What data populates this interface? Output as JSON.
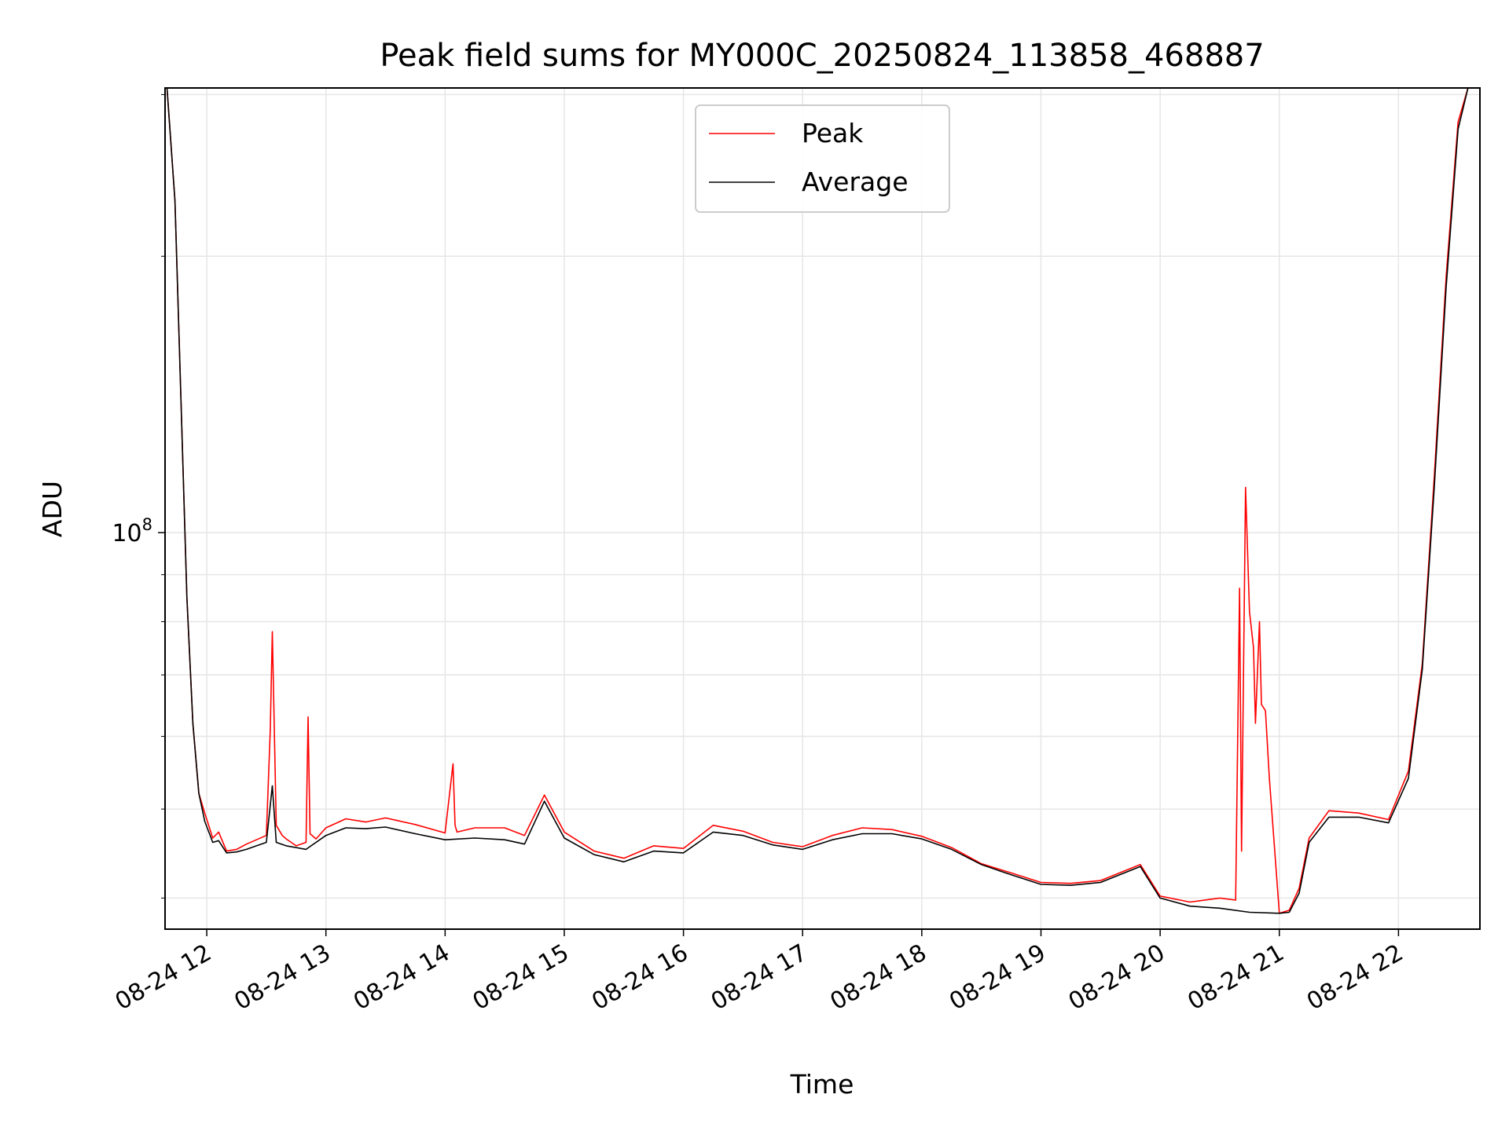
{
  "chart_data": {
    "type": "line",
    "title": "Peak field sums for MY000C_20250824_113858_468887",
    "xlabel": "Time",
    "ylabel": "ADU",
    "yscale": "log",
    "ylim": [
      37000000,
      305000000
    ],
    "xlim": [
      "2025-08-24 11:39",
      "2025-08-24 22:41"
    ],
    "grid": true,
    "legend_position": "top-center",
    "x_tick_labels": [
      "08-24 12",
      "08-24 13",
      "08-24 14",
      "08-24 15",
      "08-24 16",
      "08-24 17",
      "08-24 18",
      "08-24 19",
      "08-24 20",
      "08-24 21",
      "08-24 22"
    ],
    "y_tick_labels": [
      {
        "base": "10",
        "exponent": "8"
      }
    ],
    "colors": {
      "Peak": "#ff0000",
      "Average": "#000000"
    },
    "series": [
      {
        "name": "Peak",
        "x": [
          "2025-08-24 11:40",
          "2025-08-24 11:44",
          "2025-08-24 11:47",
          "2025-08-24 11:50",
          "2025-08-24 11:53",
          "2025-08-24 11:56",
          "2025-08-24 11:59",
          "2025-08-24 12:03",
          "2025-08-24 12:06",
          "2025-08-24 12:10",
          "2025-08-24 12:15",
          "2025-08-24 12:20",
          "2025-08-24 12:25",
          "2025-08-24 12:30",
          "2025-08-24 12:32",
          "2025-08-24 12:33",
          "2025-08-24 12:35",
          "2025-08-24 12:38",
          "2025-08-24 12:40",
          "2025-08-24 12:45",
          "2025-08-24 12:50",
          "2025-08-24 12:51",
          "2025-08-24 12:52",
          "2025-08-24 12:55",
          "2025-08-24 13:00",
          "2025-08-24 13:10",
          "2025-08-24 13:20",
          "2025-08-24 13:30",
          "2025-08-24 13:45",
          "2025-08-24 14:00",
          "2025-08-24 14:04",
          "2025-08-24 14:05",
          "2025-08-24 14:06",
          "2025-08-24 14:15",
          "2025-08-24 14:30",
          "2025-08-24 14:40",
          "2025-08-24 14:50",
          "2025-08-24 15:00",
          "2025-08-24 15:15",
          "2025-08-24 15:30",
          "2025-08-24 15:45",
          "2025-08-24 16:00",
          "2025-08-24 16:15",
          "2025-08-24 16:30",
          "2025-08-24 16:45",
          "2025-08-24 17:00",
          "2025-08-24 17:15",
          "2025-08-24 17:30",
          "2025-08-24 17:45",
          "2025-08-24 18:00",
          "2025-08-24 18:15",
          "2025-08-24 18:30",
          "2025-08-24 18:45",
          "2025-08-24 19:00",
          "2025-08-24 19:15",
          "2025-08-24 19:30",
          "2025-08-24 19:50",
          "2025-08-24 20:00",
          "2025-08-24 20:15",
          "2025-08-24 20:30",
          "2025-08-24 20:38",
          "2025-08-24 20:40",
          "2025-08-24 20:41",
          "2025-08-24 20:43",
          "2025-08-24 20:45",
          "2025-08-24 20:47",
          "2025-08-24 20:48",
          "2025-08-24 20:50",
          "2025-08-24 20:51",
          "2025-08-24 20:53",
          "2025-08-24 20:55",
          "2025-08-24 21:00",
          "2025-08-24 21:05",
          "2025-08-24 21:10",
          "2025-08-24 21:15",
          "2025-08-24 21:25",
          "2025-08-24 21:40",
          "2025-08-24 21:55",
          "2025-08-24 22:05",
          "2025-08-24 22:12",
          "2025-08-24 22:18",
          "2025-08-24 22:24",
          "2025-08-24 22:30",
          "2025-08-24 22:35",
          "2025-08-24 22:38"
        ],
        "values": [
          305000000,
          230000000,
          140000000,
          85000000,
          62000000,
          52000000,
          49500000,
          46500000,
          47200000,
          45000000,
          45200000,
          45800000,
          46300000,
          46800000,
          61000000,
          78000000,
          48000000,
          46800000,
          46400000,
          45600000,
          46000000,
          63000000,
          47000000,
          46400000,
          47700000,
          48800000,
          48400000,
          48900000,
          48100000,
          47100000,
          56000000,
          48000000,
          47200000,
          47700000,
          47700000,
          46800000,
          51800000,
          47200000,
          45000000,
          44200000,
          45600000,
          45300000,
          48000000,
          47300000,
          46000000,
          45500000,
          46800000,
          47700000,
          47500000,
          46700000,
          45400000,
          43600000,
          42600000,
          41600000,
          41500000,
          41800000,
          43500000,
          40200000,
          39600000,
          40000000,
          39800000,
          87000000,
          45000000,
          112000000,
          82000000,
          75000000,
          62000000,
          80000000,
          65000000,
          64000000,
          54000000,
          38500000,
          38800000,
          41000000,
          46500000,
          49800000,
          49500000,
          48700000,
          55000000,
          72000000,
          115000000,
          190000000,
          280000000,
          305000000,
          305000000
        ]
      },
      {
        "name": "Average",
        "x": [
          "2025-08-24 11:40",
          "2025-08-24 11:44",
          "2025-08-24 11:47",
          "2025-08-24 11:50",
          "2025-08-24 11:53",
          "2025-08-24 11:56",
          "2025-08-24 11:59",
          "2025-08-24 12:03",
          "2025-08-24 12:06",
          "2025-08-24 12:10",
          "2025-08-24 12:15",
          "2025-08-24 12:20",
          "2025-08-24 12:25",
          "2025-08-24 12:30",
          "2025-08-24 12:33",
          "2025-08-24 12:35",
          "2025-08-24 12:40",
          "2025-08-24 12:50",
          "2025-08-24 13:00",
          "2025-08-24 13:10",
          "2025-08-24 13:20",
          "2025-08-24 13:30",
          "2025-08-24 13:45",
          "2025-08-24 14:00",
          "2025-08-24 14:15",
          "2025-08-24 14:30",
          "2025-08-24 14:40",
          "2025-08-24 14:50",
          "2025-08-24 15:00",
          "2025-08-24 15:15",
          "2025-08-24 15:30",
          "2025-08-24 15:45",
          "2025-08-24 16:00",
          "2025-08-24 16:15",
          "2025-08-24 16:30",
          "2025-08-24 16:45",
          "2025-08-24 17:00",
          "2025-08-24 17:15",
          "2025-08-24 17:30",
          "2025-08-24 17:45",
          "2025-08-24 18:00",
          "2025-08-24 18:15",
          "2025-08-24 18:30",
          "2025-08-24 18:45",
          "2025-08-24 19:00",
          "2025-08-24 19:15",
          "2025-08-24 19:30",
          "2025-08-24 19:50",
          "2025-08-24 20:00",
          "2025-08-24 20:15",
          "2025-08-24 20:30",
          "2025-08-24 20:45",
          "2025-08-24 21:00",
          "2025-08-24 21:05",
          "2025-08-24 21:10",
          "2025-08-24 21:15",
          "2025-08-24 21:25",
          "2025-08-24 21:40",
          "2025-08-24 21:55",
          "2025-08-24 22:05",
          "2025-08-24 22:12",
          "2025-08-24 22:18",
          "2025-08-24 22:24",
          "2025-08-24 22:30",
          "2025-08-24 22:35",
          "2025-08-24 22:38"
        ],
        "values": [
          305000000,
          230000000,
          140000000,
          85000000,
          62000000,
          52000000,
          48500000,
          46000000,
          46200000,
          44800000,
          44900000,
          45200000,
          45600000,
          46000000,
          53000000,
          46000000,
          45600000,
          45200000,
          46800000,
          47700000,
          47600000,
          47800000,
          47000000,
          46300000,
          46500000,
          46300000,
          45800000,
          51000000,
          46500000,
          44600000,
          43800000,
          45000000,
          44800000,
          47200000,
          46800000,
          45700000,
          45200000,
          46300000,
          47000000,
          47000000,
          46400000,
          45200000,
          43500000,
          42400000,
          41400000,
          41300000,
          41600000,
          43300000,
          40000000,
          39200000,
          39000000,
          38600000,
          38500000,
          38600000,
          40500000,
          46000000,
          49000000,
          49000000,
          48300000,
          54000000,
          71000000,
          112000000,
          185000000,
          275000000,
          305000000,
          305000000
        ]
      }
    ]
  }
}
